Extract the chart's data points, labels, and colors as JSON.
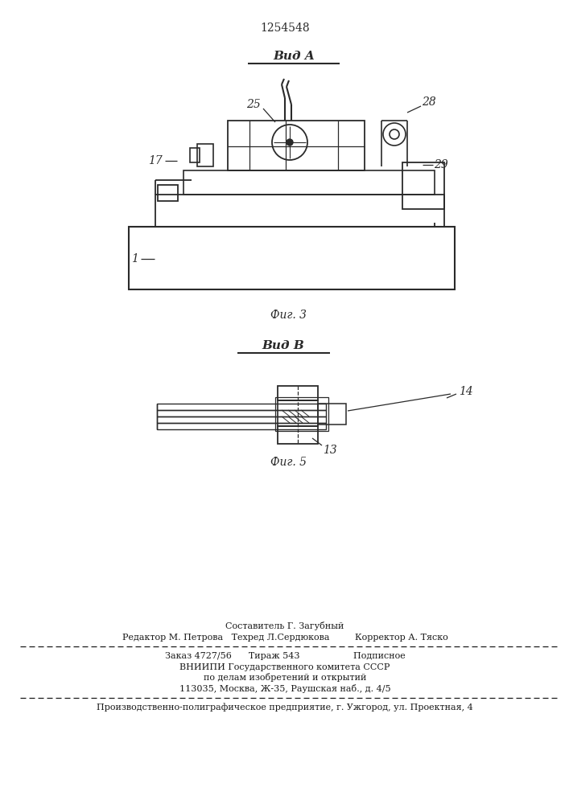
{
  "patent_number": "1254548",
  "bg_color": "#ffffff",
  "line_color": "#2a2a2a",
  "fig3_label": "Фиг. 3",
  "fig5_label": "Фиг. 5",
  "vid_a_label": "Вид A",
  "vid_b_label": "Вид B",
  "footer_line1": "Составитель Г. Загубный",
  "footer_line2": "Редактор М. Петрова   Техред Л.Сердюкова         Корректор А. Тяско",
  "footer_line3": "Заказ 4727/56      Тираж 543                   Подписное",
  "footer_line4": "ВНИИПИ Государственного комитета СССР",
  "footer_line5": "по делам изобретений и открытий",
  "footer_line6": "113035, Москва, Ж-35, Раушская наб., д. 4/5",
  "footer_line7": "Производственно-полиграфическое предприятие, г. Ужгород, ул. Проектная, 4"
}
